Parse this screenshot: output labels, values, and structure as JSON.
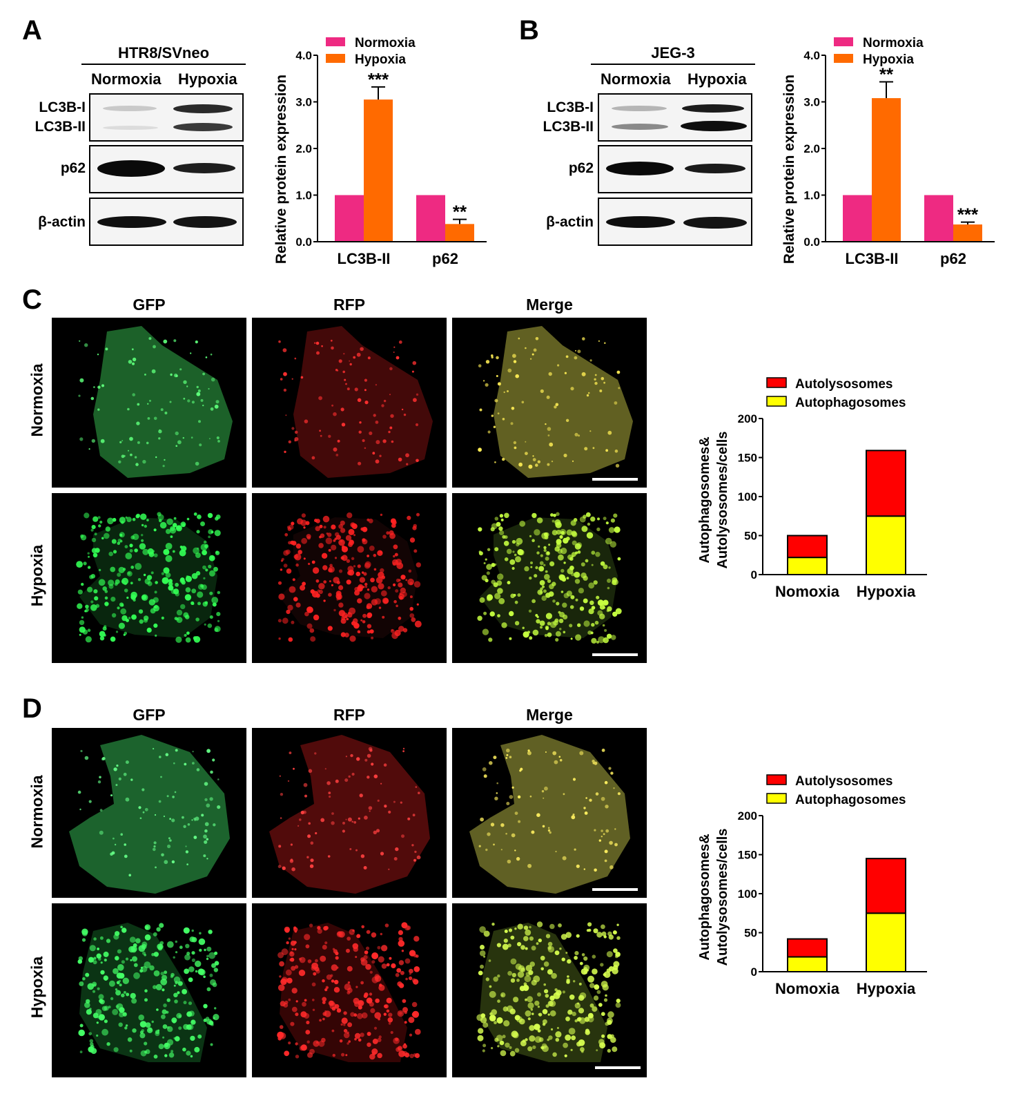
{
  "panels": {
    "A": {
      "letter": "A",
      "cell_line": "HTR8/SVneo",
      "conditions": [
        "Normoxia",
        "Hypoxia"
      ],
      "bands": [
        "LC3B-I",
        "LC3B-II",
        "p62",
        "β-actin"
      ]
    },
    "B": {
      "letter": "B",
      "cell_line": "JEG-3",
      "conditions": [
        "Normoxia",
        "Hypoxia"
      ],
      "bands": [
        "LC3B-I",
        "LC3B-II",
        "p62",
        "β-actin"
      ]
    },
    "C": {
      "letter": "C",
      "columns": [
        "GFP",
        "RFP",
        "Merge"
      ],
      "rows": [
        "Normoxia",
        "Hypoxia"
      ]
    },
    "D": {
      "letter": "D",
      "columns": [
        "GFP",
        "RFP",
        "Merge"
      ],
      "rows": [
        "Normoxia",
        "Hypoxia"
      ]
    }
  },
  "colors": {
    "normoxia": "#ee2a82",
    "hypoxia": "#ff6a00",
    "autolysosomes": "#ff0000",
    "autophagosomes": "#ffff00"
  },
  "chart_data": [
    {
      "id": "A",
      "type": "bar",
      "categories": [
        "LC3B-II",
        "p62"
      ],
      "series": [
        {
          "name": "Normoxia",
          "values": [
            1.0,
            1.0
          ],
          "errors": [
            0,
            0
          ],
          "sig": [
            "",
            ""
          ]
        },
        {
          "name": "Hypoxia",
          "values": [
            3.05,
            0.38
          ],
          "errors": [
            0.27,
            0.1
          ],
          "sig": [
            "***",
            "**"
          ]
        }
      ],
      "ylabel": "Relative protein expression",
      "ylim": [
        0,
        4.0
      ],
      "yticks": [
        "0.0",
        "1.0",
        "2.0",
        "3.0",
        "4.0"
      ],
      "legend": "top"
    },
    {
      "id": "B",
      "type": "bar",
      "categories": [
        "LC3B-II",
        "p62"
      ],
      "series": [
        {
          "name": "Normoxia",
          "values": [
            1.0,
            1.0
          ],
          "errors": [
            0,
            0
          ],
          "sig": [
            "",
            ""
          ]
        },
        {
          "name": "Hypoxia",
          "values": [
            3.08,
            0.37
          ],
          "errors": [
            0.35,
            0.05
          ],
          "sig": [
            "**",
            "***"
          ]
        }
      ],
      "ylabel": "Relative protein expression",
      "ylim": [
        0,
        4.0
      ],
      "yticks": [
        "0.0",
        "1.0",
        "2.0",
        "3.0",
        "4.0"
      ],
      "legend": "top"
    },
    {
      "id": "C",
      "type": "bar",
      "stacked": true,
      "categories": [
        "Nomoxia",
        "Hypoxia"
      ],
      "series": [
        {
          "name": "Autophagosomes",
          "values": [
            22,
            75
          ]
        },
        {
          "name": "Autolysosomes",
          "values": [
            28,
            84
          ]
        }
      ],
      "ylabel_lines": [
        "Autophagosomes&",
        "Autolysosomes/cells"
      ],
      "ylim": [
        0,
        200
      ],
      "yticks": [
        "0",
        "50",
        "100",
        "150",
        "200"
      ],
      "legend": "top"
    },
    {
      "id": "D",
      "type": "bar",
      "stacked": true,
      "categories": [
        "Nomoxia",
        "Hypoxia"
      ],
      "series": [
        {
          "name": "Autophagosomes",
          "values": [
            19,
            75
          ]
        },
        {
          "name": "Autolysosomes",
          "values": [
            23,
            70
          ]
        }
      ],
      "ylabel_lines": [
        "Autophagosomes&",
        "Autolysosomes/cells"
      ],
      "ylim": [
        0,
        200
      ],
      "yticks": [
        "0",
        "50",
        "100",
        "150",
        "200"
      ],
      "legend": "top"
    }
  ]
}
